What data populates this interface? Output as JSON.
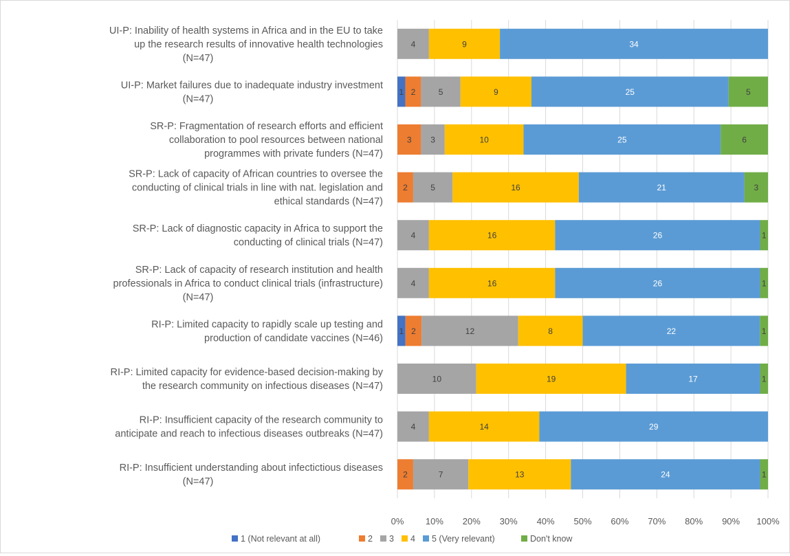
{
  "chart_data": {
    "type": "bar",
    "orientation": "horizontal",
    "stacked": "percent",
    "categories": [
      [
        "UI-P: Inability of health systems in Africa and in the EU to take",
        "up the research results of innovative health technologies",
        "(N=47)"
      ],
      [
        "UI-P: Market failures due to inadequate industry investment",
        "(N=47)"
      ],
      [
        "SR-P: Fragmentation of research efforts and efficient",
        "collaboration to pool resources between national",
        "programmes with private funders (N=47)"
      ],
      [
        "SR-P: Lack of capacity of African countries to oversee the",
        "conducting of clinical trials in line with nat. legislation and",
        "ethical standards (N=47)"
      ],
      [
        "SR-P: Lack of diagnostic capacity in Africa to support the",
        "conducting of clinical trials (N=47)"
      ],
      [
        "SR-P: Lack of capacity of research institution and health",
        "professionals in Africa to conduct clinical trials (infrastructure)",
        "(N=47)"
      ],
      [
        "RI-P: Limited capacity to rapidly scale up testing and",
        "production of candidate vaccines (N=46)"
      ],
      [
        "RI-P: Limited capacity for evidence-based decision-making by",
        "the research community on infectious diseases (N=47)"
      ],
      [
        "RI-P: Insufficient capacity of the research community to",
        "anticipate and reach to infectious diseases outbreaks (N=47)"
      ],
      [
        "RI-P: Insufficient understanding about infectictious diseases",
        "(N=47)"
      ]
    ],
    "series": [
      {
        "name": "1 (Not relevant at all)",
        "color": "#4472C4",
        "values": [
          0,
          1,
          0,
          0,
          0,
          0,
          1,
          0,
          0,
          0
        ]
      },
      {
        "name": "2",
        "color": "#ED7D31",
        "values": [
          0,
          2,
          3,
          2,
          0,
          0,
          2,
          0,
          0,
          2
        ]
      },
      {
        "name": "3",
        "color": "#A5A5A5",
        "values": [
          4,
          5,
          3,
          5,
          4,
          4,
          12,
          10,
          4,
          7
        ]
      },
      {
        "name": "4",
        "color": "#FFC000",
        "values": [
          9,
          9,
          10,
          16,
          16,
          16,
          8,
          19,
          14,
          13
        ]
      },
      {
        "name": "5 (Very relevant)",
        "color": "#5B9BD5",
        "values": [
          34,
          25,
          25,
          21,
          26,
          26,
          22,
          17,
          29,
          24
        ]
      },
      {
        "name": "Don't know",
        "color": "#70AD47",
        "values": [
          0,
          5,
          6,
          3,
          1,
          1,
          1,
          1,
          0,
          1
        ]
      }
    ],
    "xlim": [
      0,
      100
    ],
    "xticks": [
      "0%",
      "10%",
      "20%",
      "30%",
      "40%",
      "50%",
      "60%",
      "70%",
      "80%",
      "90%",
      "100%"
    ],
    "grid": true,
    "legend_position": "bottom"
  }
}
